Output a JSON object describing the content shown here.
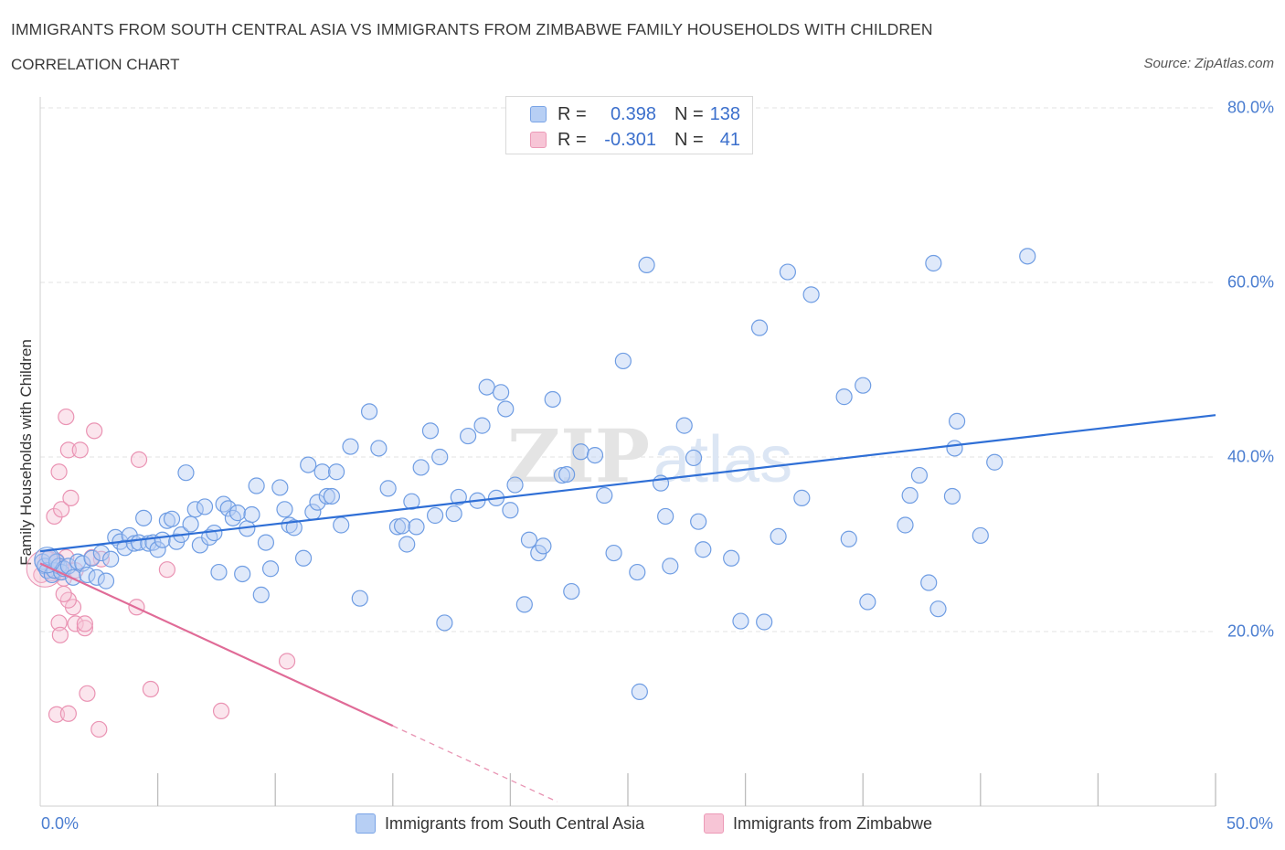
{
  "title": "IMMIGRANTS FROM SOUTH CENTRAL ASIA VS IMMIGRANTS FROM ZIMBABWE FAMILY HOUSEHOLDS WITH CHILDREN",
  "subtitle": "CORRELATION CHART",
  "source": "Source: ZipAtlas.com",
  "watermark": "ZIPatlas",
  "colors": {
    "blue": "#5b8fdf",
    "blue_fill": "#b7cff4",
    "pink": "#e8739c",
    "pink_fill": "#f7c5d6",
    "tick_text": "#4a7dd0"
  },
  "legend_top": {
    "rows": [
      {
        "r_label": "R =",
        "r_value": "0.398",
        "n_label": "N =",
        "n_value": "138"
      },
      {
        "r_label": "R =",
        "r_value": "-0.301",
        "n_label": "N =",
        "n_value": "41"
      }
    ]
  },
  "chart_data": {
    "type": "scatter",
    "ylabel": "Family Households with Children",
    "xlim": [
      0,
      50
    ],
    "ylim": [
      0,
      80
    ],
    "y_ticks": [
      "20.0%",
      "40.0%",
      "60.0%",
      "80.0%"
    ],
    "y_tick_values": [
      20,
      40,
      60,
      80
    ],
    "x_tick_labels": [
      "0.0%",
      "50.0%"
    ],
    "x_tick_values": [
      0,
      50
    ],
    "grid": true,
    "series": [
      {
        "name": "Immigrants from South Central Asia",
        "color": "#5b8fdf",
        "trend": {
          "x0": 0,
          "y0": 29.2,
          "x1": 50,
          "y1": 44.8
        },
        "points": [
          [
            0.1,
            28
          ],
          [
            0.2,
            27.5
          ],
          [
            0.3,
            27
          ],
          [
            0.4,
            28.5
          ],
          [
            0.5,
            26.5
          ],
          [
            0.6,
            27
          ],
          [
            0.7,
            28
          ],
          [
            0.8,
            27.5
          ],
          [
            0.9,
            26.8
          ],
          [
            1.0,
            27.2
          ],
          [
            1.2,
            27.5
          ],
          [
            1.4,
            26.2
          ],
          [
            1.6,
            28
          ],
          [
            1.8,
            27.8
          ],
          [
            2.0,
            26.5
          ],
          [
            2.2,
            28.4
          ],
          [
            2.4,
            26.2
          ],
          [
            2.6,
            29
          ],
          [
            2.8,
            25.8
          ],
          [
            3.0,
            28.3
          ],
          [
            3.2,
            30.8
          ],
          [
            3.4,
            30.3
          ],
          [
            3.6,
            29.6
          ],
          [
            3.8,
            31
          ],
          [
            4.0,
            30.1
          ],
          [
            4.2,
            30.2
          ],
          [
            4.4,
            33
          ],
          [
            4.6,
            30.1
          ],
          [
            4.8,
            30.2
          ],
          [
            5.0,
            29.4
          ],
          [
            5.2,
            30.5
          ],
          [
            5.4,
            32.7
          ],
          [
            5.6,
            32.9
          ],
          [
            5.8,
            30.3
          ],
          [
            6.0,
            31.1
          ],
          [
            6.2,
            38.2
          ],
          [
            6.4,
            32.3
          ],
          [
            6.6,
            34
          ],
          [
            6.8,
            29.9
          ],
          [
            7.0,
            34.3
          ],
          [
            7.2,
            30.8
          ],
          [
            7.4,
            31.3
          ],
          [
            7.6,
            26.8
          ],
          [
            7.8,
            34.6
          ],
          [
            8.0,
            34.1
          ],
          [
            8.2,
            33
          ],
          [
            8.4,
            33.6
          ],
          [
            8.6,
            26.6
          ],
          [
            8.8,
            31.8
          ],
          [
            9.0,
            33.4
          ],
          [
            9.2,
            36.7
          ],
          [
            9.4,
            24.2
          ],
          [
            9.6,
            30.2
          ],
          [
            9.8,
            27.2
          ],
          [
            10.2,
            36.5
          ],
          [
            10.4,
            34
          ],
          [
            10.6,
            32.2
          ],
          [
            10.8,
            31.9
          ],
          [
            11.2,
            28.4
          ],
          [
            11.4,
            39.1
          ],
          [
            11.6,
            33.7
          ],
          [
            11.8,
            34.8
          ],
          [
            12.0,
            38.3
          ],
          [
            12.2,
            35.5
          ],
          [
            12.4,
            35.5
          ],
          [
            12.6,
            38.3
          ],
          [
            12.8,
            32.2
          ],
          [
            13.2,
            41.2
          ],
          [
            13.6,
            23.8
          ],
          [
            14.0,
            45.2
          ],
          [
            14.4,
            41
          ],
          [
            14.8,
            36.4
          ],
          [
            15.2,
            32
          ],
          [
            15.4,
            32.1
          ],
          [
            15.6,
            30
          ],
          [
            15.8,
            34.9
          ],
          [
            16.2,
            38.8
          ],
          [
            16.6,
            43
          ],
          [
            16.8,
            33.3
          ],
          [
            17.0,
            40
          ],
          [
            17.2,
            21
          ],
          [
            17.6,
            33.5
          ],
          [
            17.8,
            35.4
          ],
          [
            18.2,
            42.4
          ],
          [
            18.6,
            35
          ],
          [
            18.8,
            43.6
          ],
          [
            19.0,
            48
          ],
          [
            19.4,
            35.3
          ],
          [
            19.6,
            47.4
          ],
          [
            19.8,
            45.5
          ],
          [
            20.0,
            33.9
          ],
          [
            20.2,
            36.8
          ],
          [
            20.6,
            23.1
          ],
          [
            20.8,
            30.5
          ],
          [
            21.2,
            29
          ],
          [
            21.4,
            29.8
          ],
          [
            21.8,
            46.6
          ],
          [
            22.2,
            37.9
          ],
          [
            22.4,
            38
          ],
          [
            22.6,
            24.6
          ],
          [
            23.0,
            40.6
          ],
          [
            23.6,
            40.2
          ],
          [
            24.0,
            35.6
          ],
          [
            24.4,
            29
          ],
          [
            24.8,
            51
          ],
          [
            25.4,
            26.8
          ],
          [
            25.8,
            62
          ],
          [
            26.4,
            37
          ],
          [
            26.6,
            33.2
          ],
          [
            26.8,
            27.5
          ],
          [
            27.4,
            43.6
          ],
          [
            27.8,
            39.9
          ],
          [
            28.0,
            32.6
          ],
          [
            28.2,
            29.4
          ],
          [
            29.4,
            28.4
          ],
          [
            29.8,
            21.2
          ],
          [
            30.6,
            54.8
          ],
          [
            30.8,
            21.1
          ],
          [
            31.4,
            30.9
          ],
          [
            31.8,
            61.2
          ],
          [
            32.4,
            35.3
          ],
          [
            32.8,
            58.6
          ],
          [
            34.2,
            46.9
          ],
          [
            34.4,
            30.6
          ],
          [
            35.0,
            48.2
          ],
          [
            35.2,
            23.4
          ],
          [
            36.8,
            32.2
          ],
          [
            37.0,
            35.6
          ],
          [
            37.4,
            37.9
          ],
          [
            37.8,
            25.6
          ],
          [
            38.0,
            62.2
          ],
          [
            38.2,
            22.6
          ],
          [
            38.8,
            35.5
          ],
          [
            38.9,
            41
          ],
          [
            39.0,
            44.1
          ],
          [
            40.0,
            31
          ],
          [
            40.6,
            39.4
          ],
          [
            42.0,
            63
          ],
          [
            25.5,
            13.1
          ],
          [
            16.0,
            32.0
          ]
        ]
      },
      {
        "name": "Immigrants from Zimbabwe",
        "color": "#e8739c",
        "trend": {
          "x0": 0,
          "y0": 27.8,
          "x1": 15,
          "y1": 9.2,
          "dash_x1": 22,
          "dash_y1": 0.5
        },
        "points": [
          [
            0.05,
            26.5
          ],
          [
            0.1,
            28
          ],
          [
            0.2,
            27.5
          ],
          [
            0.3,
            28.3
          ],
          [
            0.4,
            27.2
          ],
          [
            0.5,
            26.7
          ],
          [
            0.6,
            27.8
          ],
          [
            0.7,
            28.1
          ],
          [
            0.8,
            26.8
          ],
          [
            0.9,
            27.4
          ],
          [
            1.0,
            26.1
          ],
          [
            1.1,
            28.5
          ],
          [
            0.6,
            33.2
          ],
          [
            0.8,
            38.3
          ],
          [
            0.9,
            34
          ],
          [
            1.1,
            44.6
          ],
          [
            1.2,
            40.8
          ],
          [
            1.3,
            35.3
          ],
          [
            1.4,
            22.8
          ],
          [
            1.5,
            27
          ],
          [
            1.7,
            40.8
          ],
          [
            1.2,
            23.6
          ],
          [
            1.0,
            24.3
          ],
          [
            0.8,
            21
          ],
          [
            0.85,
            19.6
          ],
          [
            1.5,
            20.9
          ],
          [
            1.9,
            20.4
          ],
          [
            1.9,
            20.9
          ],
          [
            2.0,
            12.9
          ],
          [
            2.3,
            43
          ],
          [
            2.5,
            8.8
          ],
          [
            2.6,
            28.3
          ],
          [
            4.2,
            39.7
          ],
          [
            4.1,
            22.8
          ],
          [
            4.7,
            13.4
          ],
          [
            5.4,
            27.1
          ],
          [
            7.7,
            10.9
          ],
          [
            10.5,
            16.6
          ],
          [
            0.7,
            10.5
          ],
          [
            1.2,
            10.6
          ],
          [
            2.2,
            28.5
          ]
        ]
      }
    ]
  },
  "legend_bottom": [
    "Immigrants from South Central Asia",
    "Immigrants from Zimbabwe"
  ]
}
